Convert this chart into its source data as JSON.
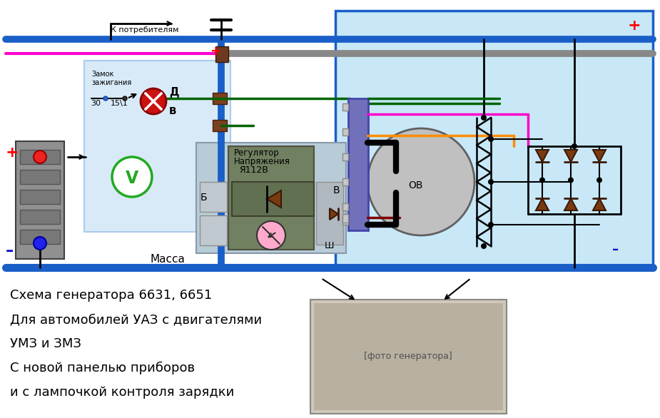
{
  "title_lines": [
    "Схема генератора 6631, 6651",
    "Для автомобилей УАЗ с двигателями",
    "УМЗ и ЗМЗ",
    "С новой панелью приборов",
    "и с лампочкой контроля зарядки"
  ],
  "bg_color": "#ffffff",
  "diagram_bg": "#c8e8f8",
  "left_panel_bg": "#d8eaf8",
  "border_color": "#1a5fc8",
  "plus_color": "#ff0000",
  "minus_color": "#0000cc",
  "wire_blue": "#1a5fc8",
  "wire_green": "#006400",
  "wire_red": "#cc0000",
  "wire_pink": "#ff00cc",
  "wire_orange": "#ff8c00",
  "wire_gray": "#888888",
  "wire_black": "#000000",
  "wire_dark_red": "#800000",
  "diode_color": "#7a3a10",
  "reg_bg": "#708060",
  "reg_inner": "#607050",
  "brush_bg": "#9090cc"
}
